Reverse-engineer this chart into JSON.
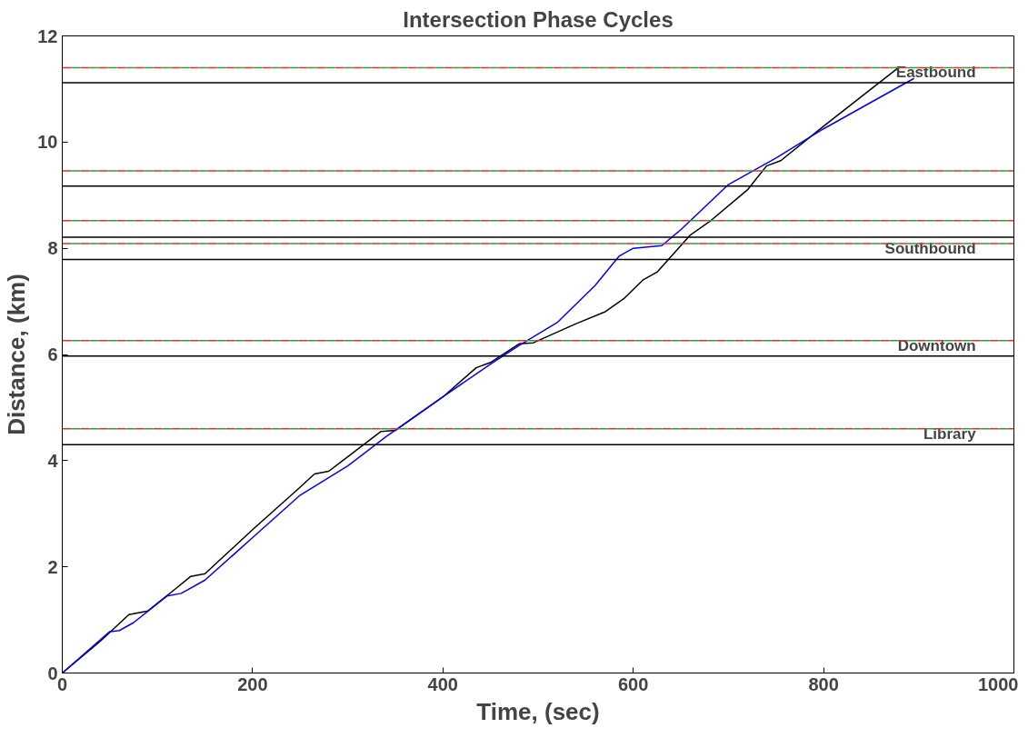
{
  "chart_data": {
    "type": "line",
    "title": "Intersection Phase Cycles",
    "xlabel": "Time, (sec)",
    "ylabel": "Distance, (km)",
    "xlim": [
      0,
      1000
    ],
    "ylim": [
      0,
      12
    ],
    "xticks": [
      0,
      200,
      400,
      600,
      800,
      1000
    ],
    "yticks": [
      0,
      2,
      4,
      6,
      8,
      10,
      12
    ],
    "grid": false,
    "marker": "none",
    "line_style": "solid",
    "series": [
      {
        "color": "#000000",
        "x": [
          0,
          40,
          70,
          90,
          120,
          135,
          150,
          200,
          250,
          265,
          280,
          335,
          350,
          400,
          435,
          450,
          480,
          495,
          540,
          570,
          590,
          610,
          625,
          660,
          680,
          720,
          740,
          755,
          800,
          850,
          880
        ],
        "values": [
          0,
          0.6,
          1.1,
          1.17,
          1.6,
          1.82,
          1.87,
          2.7,
          3.5,
          3.75,
          3.8,
          4.55,
          4.57,
          5.2,
          5.75,
          5.85,
          6.2,
          6.22,
          6.58,
          6.8,
          7.05,
          7.4,
          7.55,
          8.25,
          8.5,
          9.1,
          9.55,
          9.65,
          10.3,
          11.0,
          11.42
        ]
      },
      {
        "color": "#0000ff",
        "x": [
          0,
          50,
          60,
          75,
          110,
          125,
          150,
          200,
          250,
          300,
          340,
          400,
          450,
          480,
          520,
          560,
          585,
          600,
          630,
          650,
          700,
          750,
          800,
          850,
          895
        ],
        "values": [
          0,
          0.78,
          0.8,
          0.95,
          1.45,
          1.5,
          1.75,
          2.55,
          3.35,
          3.9,
          4.45,
          5.2,
          5.82,
          6.17,
          6.6,
          7.3,
          7.85,
          8.0,
          8.05,
          8.35,
          9.2,
          9.7,
          10.25,
          10.75,
          11.2
        ]
      }
    ],
    "ref_lines": [
      {
        "axis": "y",
        "value": 11.12,
        "label": "Eastbound",
        "color": "#000000",
        "line_style": "solid"
      },
      {
        "axis": "y",
        "value": 9.17,
        "label": null,
        "color": "#000000",
        "line_style": "solid"
      },
      {
        "axis": "y",
        "value": 8.21,
        "label": null,
        "color": "#000000",
        "line_style": "solid"
      },
      {
        "axis": "y",
        "value": 7.79,
        "label": "Southbound",
        "color": "#000000",
        "line_style": "solid"
      },
      {
        "axis": "y",
        "value": 5.97,
        "label": "Downtown",
        "color": "#000000",
        "line_style": "solid"
      },
      {
        "axis": "y",
        "value": 4.3,
        "label": "Library",
        "color": "#000000",
        "line_style": "solid"
      },
      {
        "axis": "y",
        "value": 11.4,
        "label": null,
        "color": "#e03030",
        "line_style": "dashed"
      },
      {
        "axis": "y",
        "value": 11.4,
        "label": null,
        "color": "#30a030",
        "line_style": "dashed"
      },
      {
        "axis": "y",
        "value": 9.46,
        "label": null,
        "color": "#e03030",
        "line_style": "dashed"
      },
      {
        "axis": "y",
        "value": 9.46,
        "label": null,
        "color": "#30a030",
        "line_style": "dashed"
      },
      {
        "axis": "y",
        "value": 8.52,
        "label": null,
        "color": "#e03030",
        "line_style": "dashed"
      },
      {
        "axis": "y",
        "value": 8.52,
        "label": null,
        "color": "#30a030",
        "line_style": "dashed"
      },
      {
        "axis": "y",
        "value": 8.09,
        "label": null,
        "color": "#e03030",
        "line_style": "dashed"
      },
      {
        "axis": "y",
        "value": 8.09,
        "label": null,
        "color": "#30a030",
        "line_style": "dashed"
      },
      {
        "axis": "y",
        "value": 6.26,
        "label": null,
        "color": "#e03030",
        "line_style": "dashed"
      },
      {
        "axis": "y",
        "value": 6.26,
        "label": null,
        "color": "#30a030",
        "line_style": "dashed"
      },
      {
        "axis": "y",
        "value": 4.6,
        "label": null,
        "color": "#e03030",
        "line_style": "dashed"
      },
      {
        "axis": "y",
        "value": 4.6,
        "label": null,
        "color": "#30a030",
        "line_style": "dashed"
      }
    ]
  }
}
